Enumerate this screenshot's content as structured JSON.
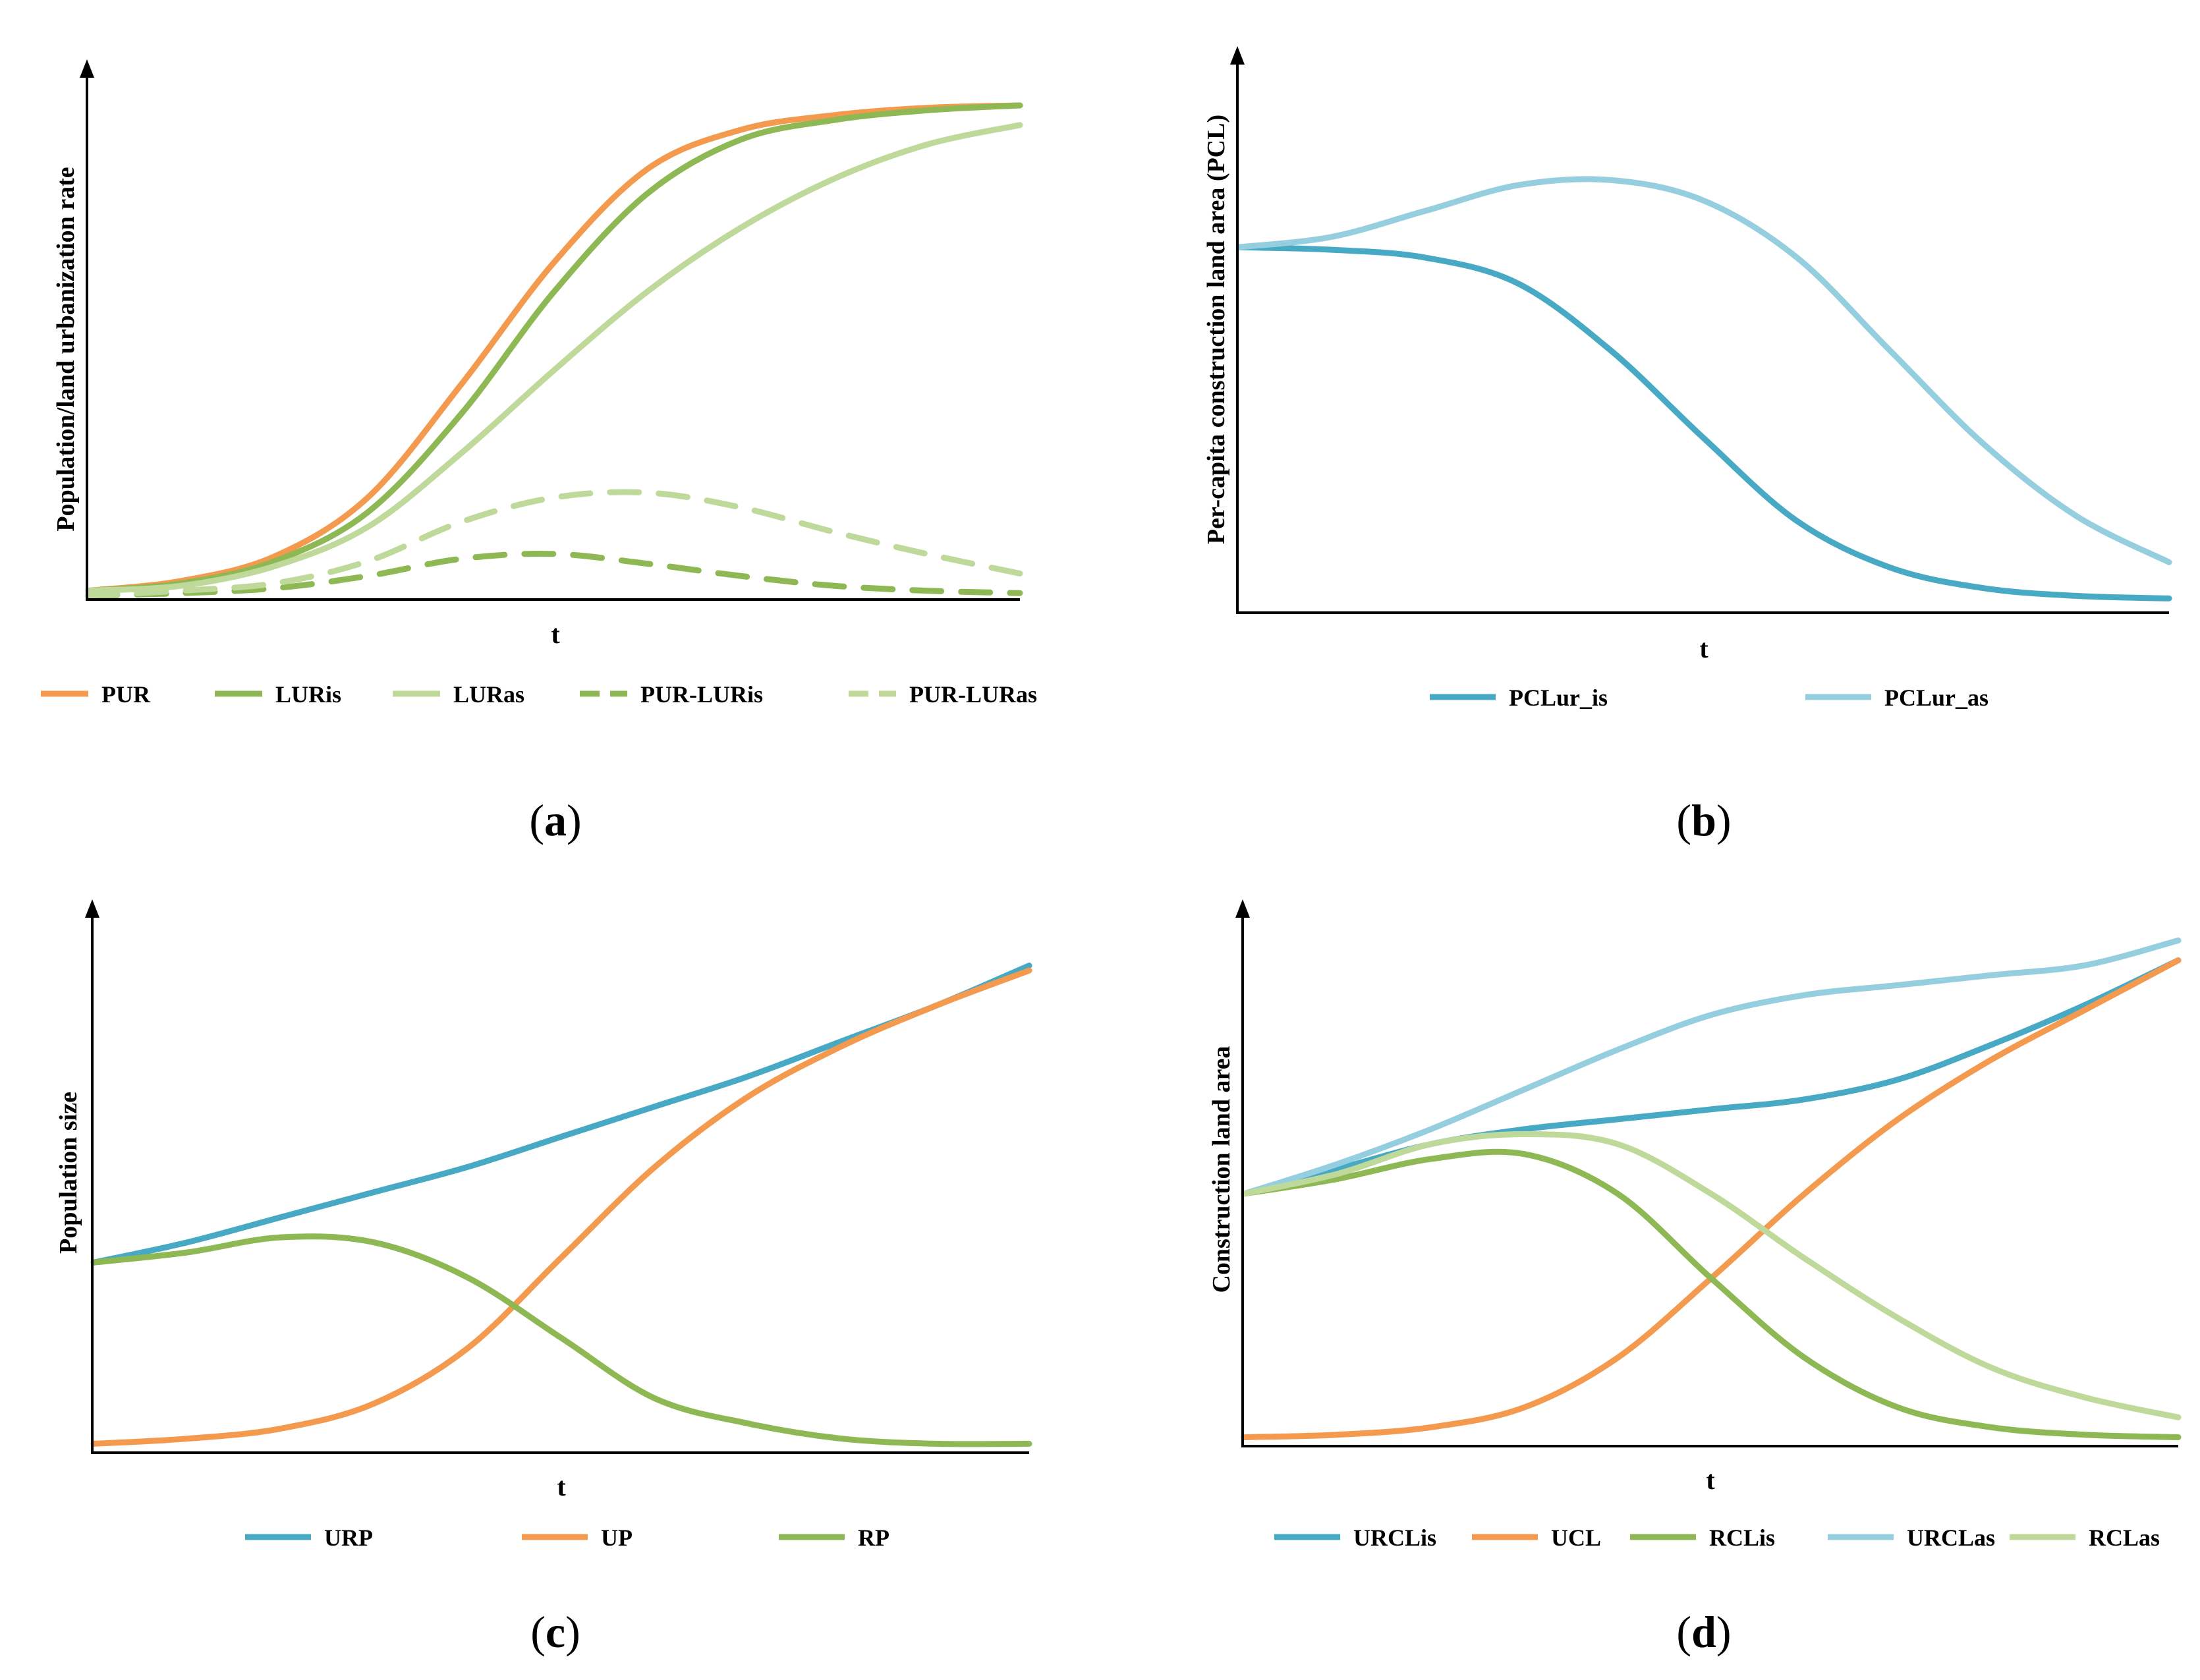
{
  "colors": {
    "orange": "#F39A4E",
    "green": "#8DB853",
    "lightgreen": "#BFD99A",
    "blue": "#48A9C5",
    "lightblue": "#95CEDF"
  },
  "chart_data": [
    {
      "id": "a",
      "type": "line",
      "panel_label": "a",
      "ylabel": "Population/land urbanization rate",
      "xlabel": "t",
      "xlim": [
        0,
        1
      ],
      "ylim": [
        0,
        1
      ],
      "x": [
        0,
        0.1,
        0.2,
        0.3,
        0.4,
        0.5,
        0.6,
        0.7,
        0.8,
        0.9,
        1.0
      ],
      "series": [
        {
          "name": "PUR",
          "color": "orange",
          "dash": false,
          "values": [
            0.01,
            0.03,
            0.08,
            0.2,
            0.43,
            0.68,
            0.87,
            0.95,
            0.98,
            0.995,
            1.0
          ]
        },
        {
          "name": "LURis",
          "color": "green",
          "dash": false,
          "values": [
            0.01,
            0.025,
            0.07,
            0.17,
            0.37,
            0.62,
            0.82,
            0.93,
            0.97,
            0.99,
            1.0
          ]
        },
        {
          "name": "LURas",
          "color": "lightgreen",
          "dash": false,
          "values": [
            0.01,
            0.02,
            0.06,
            0.14,
            0.29,
            0.46,
            0.62,
            0.75,
            0.85,
            0.92,
            0.96
          ]
        },
        {
          "name": "PUR-LURis",
          "color": "green",
          "dash": true,
          "values": [
            0.0,
            0.005,
            0.015,
            0.04,
            0.075,
            0.085,
            0.065,
            0.04,
            0.02,
            0.01,
            0.005
          ]
        },
        {
          "name": "PUR-LURas",
          "color": "lightgreen",
          "dash": true,
          "values": [
            0.0,
            0.01,
            0.025,
            0.07,
            0.15,
            0.2,
            0.21,
            0.18,
            0.13,
            0.085,
            0.045
          ]
        }
      ]
    },
    {
      "id": "b",
      "type": "line",
      "panel_label": "b",
      "ylabel": "Per-capita construction land area (PCL)",
      "xlabel": "t",
      "xlim": [
        0,
        1
      ],
      "ylim": [
        0,
        1
      ],
      "x": [
        0,
        0.1,
        0.2,
        0.3,
        0.4,
        0.5,
        0.6,
        0.7,
        0.8,
        0.9,
        1.0
      ],
      "series": [
        {
          "name": "PCLur_is",
          "color": "blue",
          "dash": false,
          "values": [
            0.7,
            0.695,
            0.68,
            0.63,
            0.5,
            0.33,
            0.17,
            0.08,
            0.04,
            0.025,
            0.02
          ]
        },
        {
          "name": "PCLur_as",
          "color": "lightblue",
          "dash": false,
          "values": [
            0.7,
            0.72,
            0.77,
            0.82,
            0.83,
            0.79,
            0.68,
            0.5,
            0.32,
            0.18,
            0.09
          ]
        }
      ]
    },
    {
      "id": "c",
      "type": "line",
      "panel_label": "c",
      "ylabel": "Population size",
      "xlabel": "t",
      "xlim": [
        0,
        1
      ],
      "ylim": [
        0,
        1
      ],
      "x": [
        0,
        0.1,
        0.2,
        0.3,
        0.4,
        0.5,
        0.6,
        0.7,
        0.8,
        0.9,
        1.0
      ],
      "series": [
        {
          "name": "URP",
          "color": "blue",
          "dash": false,
          "values": [
            0.37,
            0.41,
            0.46,
            0.51,
            0.56,
            0.62,
            0.68,
            0.74,
            0.81,
            0.88,
            0.96
          ]
        },
        {
          "name": "UP",
          "color": "orange",
          "dash": false,
          "values": [
            0.01,
            0.02,
            0.04,
            0.09,
            0.2,
            0.38,
            0.56,
            0.7,
            0.8,
            0.88,
            0.95
          ]
        },
        {
          "name": "RP",
          "color": "green",
          "dash": false,
          "values": [
            0.37,
            0.39,
            0.42,
            0.41,
            0.34,
            0.22,
            0.1,
            0.05,
            0.02,
            0.01,
            0.01
          ]
        }
      ]
    },
    {
      "id": "d",
      "type": "line",
      "panel_label": "d",
      "ylabel": "Construction land area",
      "xlabel": "t",
      "xlim": [
        0,
        1
      ],
      "ylim": [
        0,
        1
      ],
      "x": [
        0,
        0.1,
        0.2,
        0.3,
        0.4,
        0.5,
        0.6,
        0.7,
        0.8,
        0.9,
        1.0
      ],
      "series": [
        {
          "name": "URCLis",
          "color": "blue",
          "dash": false,
          "values": [
            0.5,
            0.55,
            0.6,
            0.63,
            0.65,
            0.67,
            0.69,
            0.73,
            0.8,
            0.88,
            0.97
          ]
        },
        {
          "name": "UCL",
          "color": "orange",
          "dash": false,
          "values": [
            0.01,
            0.015,
            0.03,
            0.07,
            0.17,
            0.33,
            0.5,
            0.65,
            0.77,
            0.87,
            0.97
          ]
        },
        {
          "name": "RCLis",
          "color": "green",
          "dash": false,
          "values": [
            0.5,
            0.53,
            0.57,
            0.58,
            0.5,
            0.33,
            0.17,
            0.07,
            0.03,
            0.015,
            0.01
          ]
        },
        {
          "name": "URCLas",
          "color": "lightblue",
          "dash": false,
          "values": [
            0.5,
            0.56,
            0.63,
            0.71,
            0.79,
            0.86,
            0.9,
            0.92,
            0.94,
            0.96,
            1.01
          ]
        },
        {
          "name": "RCLas",
          "color": "lightgreen",
          "dash": false,
          "values": [
            0.5,
            0.54,
            0.6,
            0.62,
            0.6,
            0.5,
            0.37,
            0.25,
            0.15,
            0.09,
            0.05
          ]
        }
      ]
    }
  ]
}
